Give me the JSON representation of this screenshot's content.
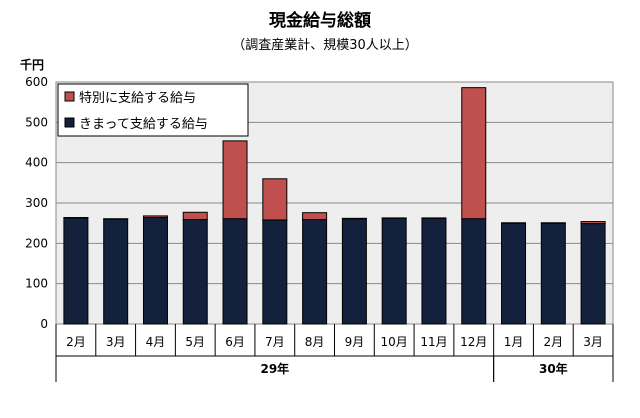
{
  "chart_data": {
    "type": "bar",
    "stacked": true,
    "title": "現金給与総額",
    "subtitle": "（調査産業計、規模30人以上）",
    "yunit": "千円",
    "ylim": [
      0,
      600
    ],
    "yticks": [
      0,
      100,
      200,
      300,
      400,
      500,
      600
    ],
    "grid": true,
    "legend_position": "top-left",
    "categories": [
      "2月",
      "3月",
      "4月",
      "5月",
      "6月",
      "7月",
      "8月",
      "9月",
      "10月",
      "11月",
      "12月",
      "1月",
      "2月",
      "3月"
    ],
    "year_groups": [
      {
        "label": "29年",
        "start": 0,
        "end": 10
      },
      {
        "label": "30年",
        "start": 11,
        "end": 13
      }
    ],
    "series": [
      {
        "name": "きまって支給する給与",
        "color": "#14213d",
        "values": [
          263,
          260,
          264,
          259,
          261,
          258,
          259,
          261,
          262,
          262,
          261,
          250,
          250,
          249
        ]
      },
      {
        "name": "特別に支給する給与",
        "color": "#c0504d",
        "values": [
          1,
          1,
          4,
          18,
          193,
          102,
          17,
          1,
          1,
          1,
          325,
          1,
          1,
          5
        ]
      }
    ]
  }
}
